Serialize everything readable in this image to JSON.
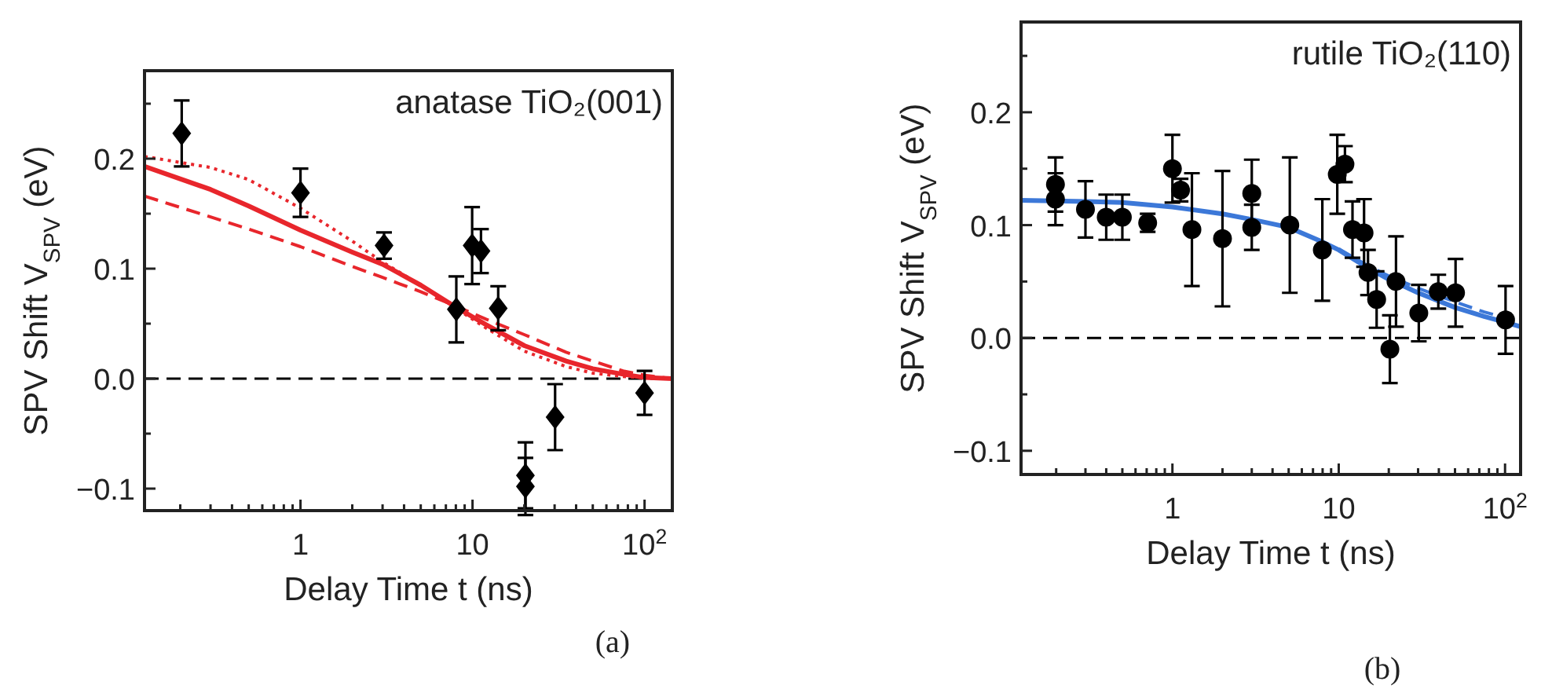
{
  "chart_data": [
    {
      "type": "scatter",
      "title": "anatase TiO₂(001)",
      "xlabel": "Delay Time  t  (ns)",
      "ylabel": "SPV Shift  V$_{SPV}$  (eV)",
      "log": "x",
      "xlim": [
        0.124,
        145
      ],
      "ylim": [
        -0.12,
        0.28
      ],
      "xticks": [
        {
          "value": 0.2,
          "label": null
        },
        {
          "value": 0.3,
          "label": null
        },
        {
          "value": 0.4,
          "label": null
        },
        {
          "value": 0.5,
          "label": null
        },
        {
          "value": 0.6,
          "label": null
        },
        {
          "value": 0.7,
          "label": null
        },
        {
          "value": 0.8,
          "label": null
        },
        {
          "value": 0.9,
          "label": null
        },
        {
          "value": 1,
          "label": "1"
        },
        {
          "value": 2,
          "label": null
        },
        {
          "value": 3,
          "label": null
        },
        {
          "value": 4,
          "label": null
        },
        {
          "value": 5,
          "label": null
        },
        {
          "value": 6,
          "label": null
        },
        {
          "value": 7,
          "label": null
        },
        {
          "value": 8,
          "label": null
        },
        {
          "value": 9,
          "label": null
        },
        {
          "value": 10,
          "label": "10"
        },
        {
          "value": 20,
          "label": null
        },
        {
          "value": 30,
          "label": null
        },
        {
          "value": 40,
          "label": null
        },
        {
          "value": 50,
          "label": null
        },
        {
          "value": 60,
          "label": null
        },
        {
          "value": 70,
          "label": null
        },
        {
          "value": 80,
          "label": null
        },
        {
          "value": 90,
          "label": null
        },
        {
          "value": 100,
          "label": "10$^{2}$"
        }
      ],
      "yticks": [
        {
          "value": -0.1,
          "label": "−0.1"
        },
        {
          "value": -0.05,
          "label": null
        },
        {
          "value": 0,
          "label": "0.0"
        },
        {
          "value": 0.05,
          "label": null
        },
        {
          "value": 0.1,
          "label": "0.1"
        },
        {
          "value": 0.15,
          "label": null
        },
        {
          "value": 0.2,
          "label": "0.2"
        },
        {
          "value": 0.25,
          "label": null
        }
      ],
      "grid": false,
      "ref_lines": [
        {
          "axis": "y",
          "value": 0,
          "color": "#000000",
          "line_style": "dashed"
        }
      ],
      "annotations": [
        "(a)"
      ],
      "series": [
        {
          "type": "scatter",
          "color": "#000000",
          "marker": "diamond",
          "x": [
            0.204,
            1.0,
            3.06,
            8.05,
            9.95,
            11.2,
            14.1,
            20.3,
            20.3,
            30.2,
            100
          ],
          "values": [
            0.223,
            0.169,
            0.121,
            0.063,
            0.121,
            0.116,
            0.064,
            -0.088,
            -0.098,
            -0.035,
            -0.013
          ],
          "errors": [
            0.03,
            0.022,
            0.012,
            0.03,
            0.035,
            0.02,
            0.02,
            0.03,
            0.026,
            0.03,
            0.02
          ]
        },
        {
          "type": "line",
          "color": "#e8262c",
          "line_style": "solid",
          "x": [
            0.124,
            0.3,
            0.5,
            1,
            2,
            3,
            5,
            8,
            12,
            20,
            35,
            50,
            75,
            100,
            145
          ],
          "values": [
            0.193,
            0.172,
            0.157,
            0.135,
            0.115,
            0.104,
            0.085,
            0.065,
            0.049,
            0.03,
            0.016,
            0.009,
            0.004,
            0.001,
            0
          ]
        },
        {
          "type": "line",
          "color": "#e8262c",
          "line_style": "dotted",
          "x": [
            0.124,
            0.3,
            0.5,
            1,
            2,
            3,
            5,
            8,
            12,
            20,
            35,
            50,
            75,
            100,
            145
          ],
          "values": [
            0.202,
            0.192,
            0.181,
            0.155,
            0.125,
            0.106,
            0.085,
            0.064,
            0.046,
            0.025,
            0.011,
            0.005,
            0.002,
            0.001,
            0
          ]
        },
        {
          "type": "line",
          "color": "#e8262c",
          "line_style": "dashed",
          "x": [
            0.124,
            0.3,
            0.5,
            1,
            2,
            3,
            5,
            8,
            12,
            20,
            35,
            50,
            75,
            100,
            145
          ],
          "values": [
            0.166,
            0.147,
            0.136,
            0.12,
            0.102,
            0.092,
            0.079,
            0.066,
            0.054,
            0.04,
            0.024,
            0.016,
            0.007,
            0.003,
            0
          ]
        }
      ]
    },
    {
      "type": "scatter",
      "title": "rutile TiO₂(110)",
      "xlabel": "Delay Time  t  (ns)",
      "ylabel": "SPV Shift  V$_{SPV}$  (eV)",
      "log": "x",
      "xlim": [
        0.123,
        124
      ],
      "ylim": [
        -0.121,
        0.28
      ],
      "xticks": [
        {
          "value": 0.2,
          "label": null
        },
        {
          "value": 0.3,
          "label": null
        },
        {
          "value": 0.4,
          "label": null
        },
        {
          "value": 0.5,
          "label": null
        },
        {
          "value": 0.6,
          "label": null
        },
        {
          "value": 0.7,
          "label": null
        },
        {
          "value": 0.8,
          "label": null
        },
        {
          "value": 0.9,
          "label": null
        },
        {
          "value": 1,
          "label": "1"
        },
        {
          "value": 2,
          "label": null
        },
        {
          "value": 3,
          "label": null
        },
        {
          "value": 4,
          "label": null
        },
        {
          "value": 5,
          "label": null
        },
        {
          "value": 6,
          "label": null
        },
        {
          "value": 7,
          "label": null
        },
        {
          "value": 8,
          "label": null
        },
        {
          "value": 9,
          "label": null
        },
        {
          "value": 10,
          "label": "10"
        },
        {
          "value": 20,
          "label": null
        },
        {
          "value": 30,
          "label": null
        },
        {
          "value": 40,
          "label": null
        },
        {
          "value": 50,
          "label": null
        },
        {
          "value": 60,
          "label": null
        },
        {
          "value": 70,
          "label": null
        },
        {
          "value": 80,
          "label": null
        },
        {
          "value": 90,
          "label": null
        },
        {
          "value": 100,
          "label": "10$^{2}$"
        }
      ],
      "yticks": [
        {
          "value": -0.1,
          "label": "−0.1"
        },
        {
          "value": -0.05,
          "label": null
        },
        {
          "value": 0,
          "label": "0.0"
        },
        {
          "value": 0.05,
          "label": null
        },
        {
          "value": 0.1,
          "label": "0.1"
        },
        {
          "value": 0.15,
          "label": null
        },
        {
          "value": 0.2,
          "label": "0.2"
        },
        {
          "value": 0.25,
          "label": null
        }
      ],
      "grid": false,
      "ref_lines": [
        {
          "axis": "y",
          "value": 0,
          "color": "#000000",
          "line_style": "dashed"
        }
      ],
      "annotations": [
        "(b)"
      ],
      "series": [
        {
          "type": "scatter",
          "color": "#000000",
          "marker": "circle",
          "x": [
            0.198,
            0.198,
            0.3,
            0.4,
            0.5,
            0.71,
            1,
            1.12,
            1.31,
            2.0,
            3.0,
            3.0,
            5.08,
            7.97,
            9.8,
            10.9,
            12.1,
            14.2,
            15.0,
            16.9,
            20.3,
            22.1,
            30.3,
            39.7,
            50.4,
            100.7
          ],
          "values": [
            0.136,
            0.123,
            0.114,
            0.107,
            0.107,
            0.102,
            0.15,
            0.131,
            0.096,
            0.088,
            0.128,
            0.098,
            0.1,
            0.078,
            0.145,
            0.154,
            0.096,
            0.093,
            0.058,
            0.034,
            -0.01,
            0.05,
            0.022,
            0.041,
            0.04,
            0.016
          ],
          "errors": [
            0.024,
            0.023,
            0.025,
            0.02,
            0.02,
            0.008,
            0.03,
            0.01,
            0.05,
            0.06,
            0.03,
            0.02,
            0.06,
            0.045,
            0.035,
            0.016,
            0.025,
            0.03,
            0.02,
            0.025,
            0.03,
            0.04,
            0.025,
            0.015,
            0.03,
            0.03
          ]
        },
        {
          "type": "line",
          "color": "#3c78d8",
          "line_style": "solid",
          "x": [
            0.123,
            0.3,
            0.5,
            1,
            2,
            3,
            5,
            8,
            10,
            15,
            20,
            30,
            50,
            75,
            100,
            124
          ],
          "values": [
            0.122,
            0.121,
            0.12,
            0.116,
            0.11,
            0.105,
            0.098,
            0.085,
            0.078,
            0.062,
            0.052,
            0.04,
            0.027,
            0.019,
            0.014,
            0.01
          ]
        },
        {
          "type": "line",
          "color": "#3c78d8",
          "line_style": "dashed",
          "x": [
            10,
            15,
            20,
            30,
            50,
            75,
            100,
            124
          ],
          "values": [
            0.079,
            0.064,
            0.055,
            0.044,
            0.032,
            0.023,
            0.018,
            0.015
          ]
        }
      ]
    }
  ]
}
